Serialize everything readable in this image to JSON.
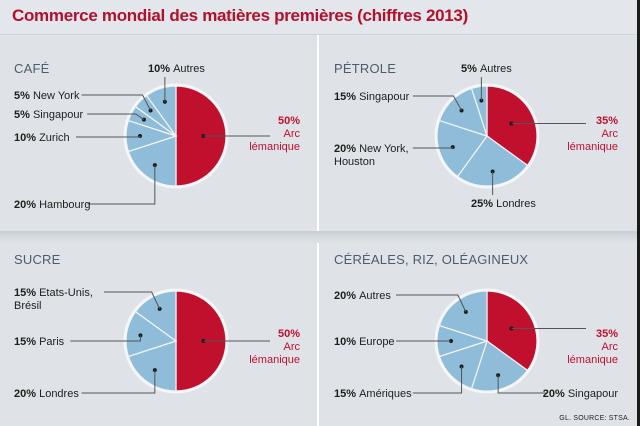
{
  "title": "Commerce mondial des matières premières (chiffres 2013)",
  "source": "GL. SOURCE: STSA.",
  "colors": {
    "highlight": "#c0102e",
    "other": "#8fbcd9",
    "title": "#b3102c",
    "panel_title": "#4b5d69"
  },
  "chart_data": [
    {
      "type": "pie",
      "title": "CAFÉ",
      "slices": [
        {
          "label": "Arc lémanique",
          "value": 50,
          "highlight": true
        },
        {
          "label": "Hambourg",
          "value": 20
        },
        {
          "label": "Zurich",
          "value": 10
        },
        {
          "label": "Singapour",
          "value": 5
        },
        {
          "label": "New York",
          "value": 5
        },
        {
          "label": "Autres",
          "value": 10
        }
      ]
    },
    {
      "type": "pie",
      "title": "PÉTROLE",
      "slices": [
        {
          "label": "Arc lémanique",
          "value": 35,
          "highlight": true
        },
        {
          "label": "Londres",
          "value": 25
        },
        {
          "label": "New York, Houston",
          "value": 20
        },
        {
          "label": "Singapour",
          "value": 15
        },
        {
          "label": "Autres",
          "value": 5
        }
      ]
    },
    {
      "type": "pie",
      "title": "SUCRE",
      "slices": [
        {
          "label": "Arc lémanique",
          "value": 50,
          "highlight": true
        },
        {
          "label": "Londres",
          "value": 20
        },
        {
          "label": "Paris",
          "value": 15
        },
        {
          "label": "Etats-Unis, Brésil",
          "value": 15
        }
      ]
    },
    {
      "type": "pie",
      "title": "CÉRÉALES, RIZ, OLÉAGINEUX",
      "slices": [
        {
          "label": "Arc lémanique",
          "value": 35,
          "highlight": true
        },
        {
          "label": "Singapour",
          "value": 20
        },
        {
          "label": "Amériques",
          "value": 15
        },
        {
          "label": "Europe",
          "value": 10
        },
        {
          "label": "Autres",
          "value": 20
        }
      ]
    }
  ]
}
